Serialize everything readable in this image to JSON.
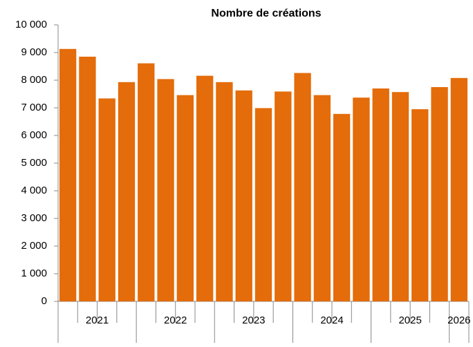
{
  "chart_data": {
    "type": "bar",
    "title": "Nombre de créations",
    "categories": [
      null,
      null,
      null,
      null,
      null,
      null,
      null,
      null,
      null,
      null,
      null,
      null,
      null,
      null,
      null,
      null,
      null,
      null,
      null,
      null,
      null
    ],
    "groups": [
      "2021",
      "2022",
      "2023",
      "2024",
      "2025",
      "2026"
    ],
    "values": [
      9130,
      8850,
      7340,
      7930,
      8610,
      8040,
      7460,
      8160,
      7930,
      7630,
      6990,
      7590,
      8260,
      7460,
      6780,
      7370,
      7700,
      7570,
      6950,
      7750,
      8080
    ],
    "color": "#e46c0a",
    "ylim": [
      0,
      10000
    ],
    "yticks": [
      0,
      {
        "value": 1000,
        "label": "1 000"
      },
      {
        "value": 2000,
        "label": "2 000"
      },
      {
        "value": 3000,
        "label": "3 000"
      },
      {
        "value": 4000,
        "label": "4 000"
      },
      {
        "value": 5000,
        "label": "5 000"
      },
      {
        "value": 6000,
        "label": "6 000"
      },
      {
        "value": 7000,
        "label": "7 000"
      },
      {
        "value": 8000,
        "label": "8 000"
      },
      {
        "value": 9000,
        "label": "9 000"
      },
      {
        "value": 10000,
        "label": "10 000"
      }
    ],
    "grid": false
  }
}
